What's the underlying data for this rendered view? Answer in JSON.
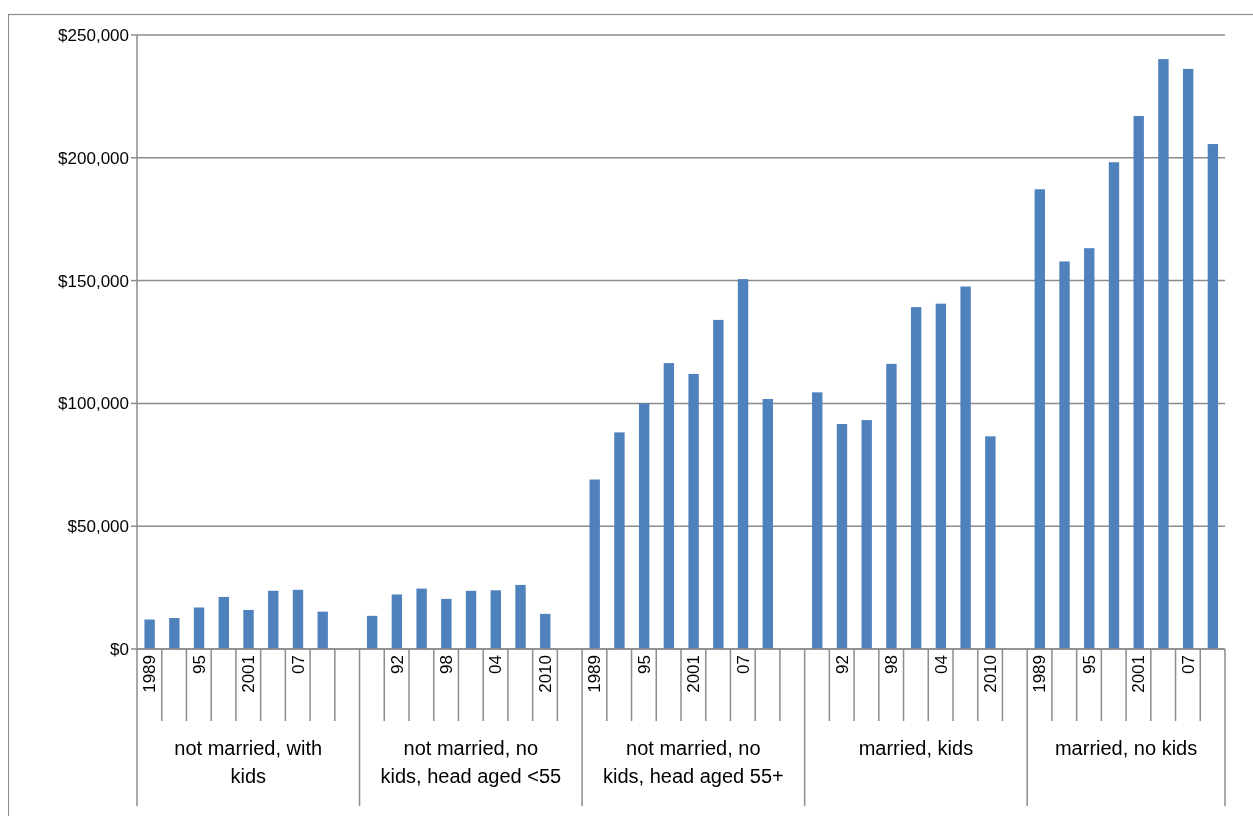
{
  "chart_data": {
    "type": "bar",
    "categories": [
      "1989",
      null,
      "95",
      null,
      "2001",
      null,
      "07",
      null,
      null,
      null,
      "92",
      null,
      "98",
      null,
      "04",
      null,
      "2010",
      null,
      "1989",
      null,
      "95",
      null,
      "2001",
      null,
      "07",
      null,
      null,
      null,
      "92",
      null,
      "98",
      null,
      "04",
      null,
      "2010",
      null,
      "1989",
      null,
      "95",
      null,
      "2001",
      null,
      "07",
      null
    ],
    "values": [
      12000,
      12600,
      16900,
      21200,
      15900,
      23700,
      24100,
      15200,
      null,
      13500,
      22200,
      24600,
      20400,
      23700,
      23900,
      26100,
      14300,
      null,
      69000,
      88200,
      100000,
      116400,
      112000,
      134000,
      150600,
      101800,
      null,
      104500,
      91600,
      93200,
      116100,
      139200,
      140600,
      147600,
      86600,
      null,
      187200,
      157800,
      163200,
      198200,
      217000,
      240200,
      236200,
      205600
    ],
    "color": "#4f81bd",
    "ylim": [
      0,
      250000
    ],
    "yticks": [
      {
        "value": 0,
        "label": "$0"
      },
      {
        "value": 50000,
        "label": "$50,000"
      },
      {
        "value": 100000,
        "label": "$100,000"
      },
      {
        "value": 150000,
        "label": "$150,000"
      },
      {
        "value": 200000,
        "label": "$200,000"
      },
      {
        "value": 250000,
        "label": "$250,000"
      }
    ],
    "grid": "y",
    "annotations": [
      "not married, with kids",
      "not married, no kids, head aged <55",
      "not married, no kids, head aged 55+",
      "married, kids",
      "married, no kids"
    ]
  }
}
